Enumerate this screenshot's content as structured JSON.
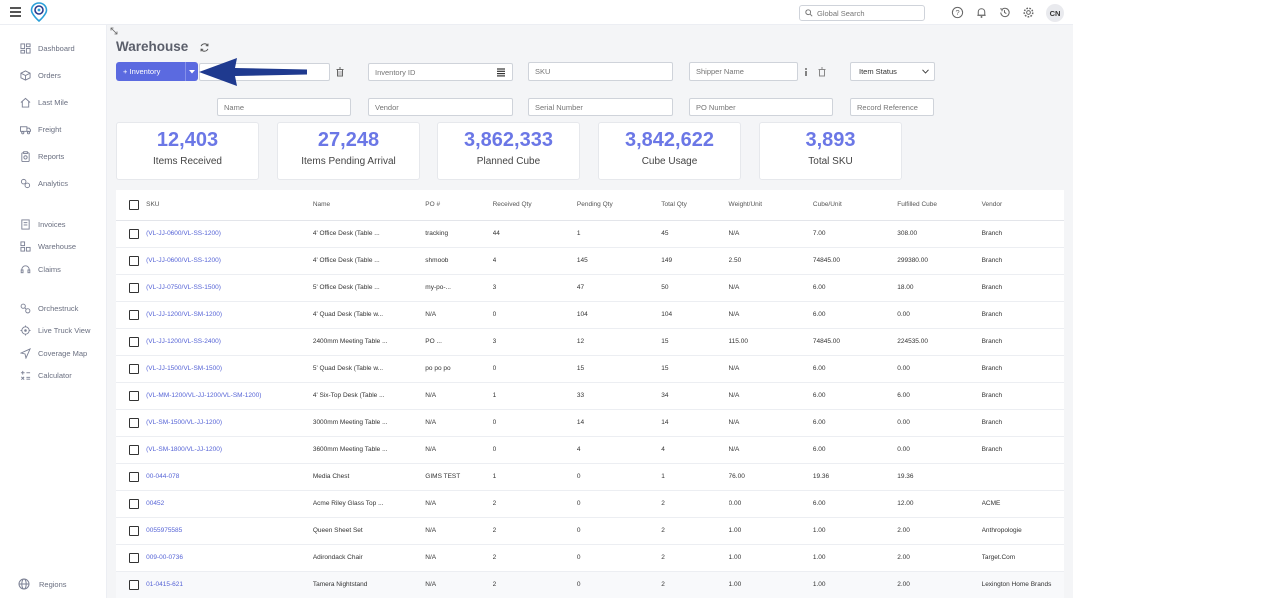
{
  "header": {
    "search_placeholder": "Global Search",
    "avatar_initials": "CN"
  },
  "sidebar": {
    "groups": [
      [
        {
          "label": "Dashboard",
          "icon": "dashboard-icon"
        },
        {
          "label": "Orders",
          "icon": "box-icon"
        },
        {
          "label": "Last Mile",
          "icon": "house-icon"
        },
        {
          "label": "Freight",
          "icon": "truck-icon"
        },
        {
          "label": "Reports",
          "icon": "clipboard-icon"
        },
        {
          "label": "Analytics",
          "icon": "analytics-icon"
        }
      ],
      [
        {
          "label": "Invoices",
          "icon": "invoice-icon"
        },
        {
          "label": "Warehouse",
          "icon": "warehouse-icon"
        },
        {
          "label": "Claims",
          "icon": "headset-icon"
        }
      ],
      [
        {
          "label": "Orchestruck",
          "icon": "orchestruck-icon"
        },
        {
          "label": "Live Truck View",
          "icon": "target-icon"
        },
        {
          "label": "Coverage Map",
          "icon": "navigation-icon"
        },
        {
          "label": "Calculator",
          "icon": "calculator-icon"
        }
      ]
    ],
    "footer": {
      "label": "Regions",
      "icon": "globe-icon"
    }
  },
  "page": {
    "title": "Warehouse",
    "inventory_button": "Inventory"
  },
  "filters": {
    "inventory_id": "Inventory ID",
    "sku": "SKU",
    "shipper_name": "Shipper Name",
    "item_status": "Item Status",
    "name": "Name",
    "vendor": "Vendor",
    "serial_number": "Serial Number",
    "po_number": "PO Number",
    "record_reference": "Record Reference"
  },
  "stats": [
    {
      "value": "12,403",
      "label": "Items Received"
    },
    {
      "value": "27,248",
      "label": "Items Pending Arrival"
    },
    {
      "value": "3,862,333",
      "label": "Planned Cube"
    },
    {
      "value": "3,842,622",
      "label": "Cube Usage"
    },
    {
      "value": "3,893",
      "label": "Total SKU"
    }
  ],
  "table": {
    "columns": [
      "SKU",
      "Name",
      "PO #",
      "Received Qty",
      "Pending Qty",
      "Total Qty",
      "Weight/Unit",
      "Cube/Unit",
      "Fulfilled Cube",
      "Vendor"
    ],
    "rows": [
      [
        "(VL-JJ-0600/VL-SS-1200)",
        "4' Office Desk (Table ...",
        "tracking",
        "44",
        "1",
        "45",
        "N/A",
        "7.00",
        "308.00",
        "Branch"
      ],
      [
        "(VL-JJ-0600/VL-SS-1200)",
        "4' Office Desk (Table ...",
        "shmoob",
        "4",
        "145",
        "149",
        "2.50",
        "74845.00",
        "299380.00",
        "Branch"
      ],
      [
        "(VL-JJ-0750/VL-SS-1500)",
        "5' Office Desk (Table ...",
        "my-po-...",
        "3",
        "47",
        "50",
        "N/A",
        "6.00",
        "18.00",
        "Branch"
      ],
      [
        "(VL-JJ-1200/VL-SM-1200)",
        "4' Quad Desk (Table w...",
        "N/A",
        "0",
        "104",
        "104",
        "N/A",
        "6.00",
        "0.00",
        "Branch"
      ],
      [
        "(VL-JJ-1200/VL-SS-2400)",
        "2400mm Meeting Table ...",
        "PO ...",
        "3",
        "12",
        "15",
        "115.00",
        "74845.00",
        "224535.00",
        "Branch"
      ],
      [
        "(VL-JJ-1500/VL-SM-1500)",
        "5' Quad Desk (Table w...",
        "po po po",
        "0",
        "15",
        "15",
        "N/A",
        "6.00",
        "0.00",
        "Branch"
      ],
      [
        "(VL-MM-1200/VL-JJ-1200/VL-SM-1200)",
        "4' Six-Top Desk (Table ...",
        "N/A",
        "1",
        "33",
        "34",
        "N/A",
        "6.00",
        "6.00",
        "Branch"
      ],
      [
        "(VL-SM-1500/VL-JJ-1200)",
        "3000mm Meeting Table ...",
        "N/A",
        "0",
        "14",
        "14",
        "N/A",
        "6.00",
        "0.00",
        "Branch"
      ],
      [
        "(VL-SM-1800/VL-JJ-1200)",
        "3600mm Meeting Table ...",
        "N/A",
        "0",
        "4",
        "4",
        "N/A",
        "6.00",
        "0.00",
        "Branch"
      ],
      [
        "00-044-078",
        "Media Chest",
        "GIMS TEST",
        "1",
        "0",
        "1",
        "76.00",
        "19.36",
        "19.36",
        ""
      ],
      [
        "00452",
        "Acme Riley Glass Top ...",
        "N/A",
        "2",
        "0",
        "2",
        "0.00",
        "6.00",
        "12.00",
        "ACME"
      ],
      [
        "0055975585",
        "Queen Sheet Set",
        "N/A",
        "2",
        "0",
        "2",
        "1.00",
        "1.00",
        "2.00",
        "Anthropologie"
      ],
      [
        "009-00-0736",
        "Adirondack Chair",
        "N/A",
        "2",
        "0",
        "2",
        "1.00",
        "1.00",
        "2.00",
        "Target.Com"
      ],
      [
        "01-0415-621",
        "Tamera Nightstand",
        "N/A",
        "2",
        "0",
        "2",
        "1.00",
        "1.00",
        "2.00",
        "Lexington Home Brands"
      ]
    ]
  },
  "colors": {
    "accent": "#5b6ae0",
    "stat_value": "#6b77e6",
    "link": "#5563d6",
    "annotation_arrow": "#1f3a8f"
  }
}
